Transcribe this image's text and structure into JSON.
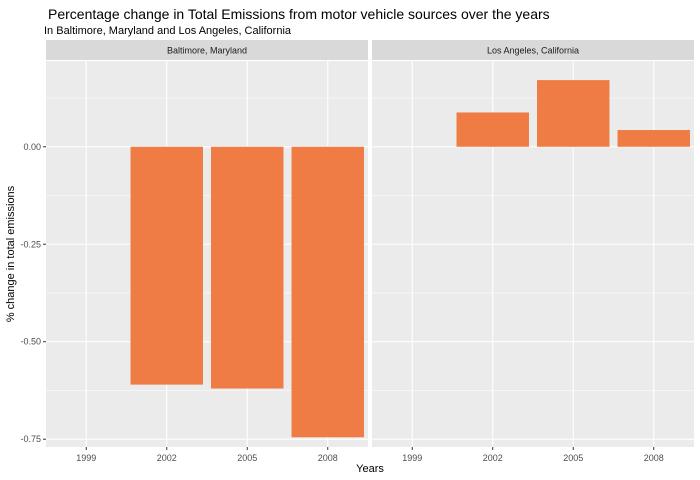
{
  "title": "Percentage change in Total Emissions from motor vehicle sources over the years",
  "subtitle": "In Baltimore, Maryland and Los Angeles, California",
  "colors": {
    "bar": "#ef7c45",
    "panel": "#ebebeb",
    "strip": "#d9d9d9",
    "grid": "#ffffff"
  },
  "chart_data": {
    "type": "bar",
    "title": "Percentage change in Total Emissions from motor vehicle sources over the years",
    "subtitle": "In Baltimore, Maryland and Los Angeles, California",
    "xlabel": "Years",
    "ylabel": "% change in total emissions",
    "categories": [
      "1999",
      "2002",
      "2005",
      "2008"
    ],
    "yticks": [
      0,
      -0.25,
      -0.5,
      -0.75
    ],
    "ytick_labels": [
      "0.00",
      "-0.25",
      "-0.50",
      "-0.75"
    ],
    "ylim": [
      -0.77,
      0.22
    ],
    "grid": true,
    "facets": [
      {
        "name": "Baltimore, Maryland",
        "values": [
          0,
          -0.61,
          -0.62,
          -0.745
        ]
      },
      {
        "name": "Los Angeles, California",
        "values": [
          0,
          0.088,
          0.171,
          0.043
        ]
      }
    ]
  }
}
